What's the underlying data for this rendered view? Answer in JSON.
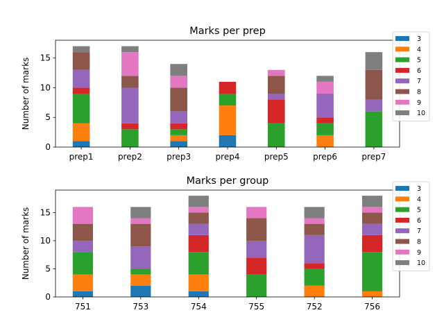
{
  "chart_data": [
    {
      "type": "bar",
      "stacked": true,
      "title": "Marks per prep",
      "xlabel": "",
      "ylabel": "Number of marks",
      "ylim": [
        0,
        18
      ],
      "yticks": [
        0,
        5,
        10,
        15
      ],
      "categories": [
        "prep1",
        "prep2",
        "prep3",
        "prep4",
        "prep5",
        "prep6",
        "prep7"
      ],
      "legend_position": "outside-top-right",
      "series": [
        {
          "name": "3",
          "color": "#1f77b4",
          "values": [
            1,
            0,
            1,
            2,
            0,
            0,
            0
          ]
        },
        {
          "name": "4",
          "color": "#ff7f0e",
          "values": [
            3,
            0,
            1,
            5,
            0,
            2,
            0
          ]
        },
        {
          "name": "5",
          "color": "#2ca02c",
          "values": [
            5,
            3,
            1,
            2,
            4,
            2,
            6
          ]
        },
        {
          "name": "6",
          "color": "#d62728",
          "values": [
            1,
            1,
            1,
            2,
            4,
            1,
            0
          ]
        },
        {
          "name": "7",
          "color": "#9467bd",
          "values": [
            3,
            6,
            2,
            0,
            1,
            4,
            2
          ]
        },
        {
          "name": "8",
          "color": "#8c564b",
          "values": [
            3,
            2,
            4,
            0,
            3,
            0,
            5
          ]
        },
        {
          "name": "9",
          "color": "#e377c2",
          "values": [
            0,
            4,
            2,
            0,
            1,
            2,
            0
          ]
        },
        {
          "name": "10",
          "color": "#7f7f7f",
          "values": [
            1,
            1,
            2,
            0,
            0,
            1,
            3
          ]
        }
      ]
    },
    {
      "type": "bar",
      "stacked": true,
      "title": "Marks per group",
      "xlabel": "",
      "ylabel": "Number of marks",
      "ylim": [
        0,
        19
      ],
      "yticks": [
        0,
        5,
        10,
        15
      ],
      "categories": [
        "751",
        "753",
        "754",
        "755",
        "752",
        "756"
      ],
      "legend_position": "outside-top-right",
      "series": [
        {
          "name": "3",
          "color": "#1f77b4",
          "values": [
            1,
            2,
            1,
            0,
            0,
            0
          ]
        },
        {
          "name": "4",
          "color": "#ff7f0e",
          "values": [
            3,
            2,
            3,
            0,
            2,
            1
          ]
        },
        {
          "name": "5",
          "color": "#2ca02c",
          "values": [
            4,
            1,
            4,
            4,
            3,
            7
          ]
        },
        {
          "name": "6",
          "color": "#d62728",
          "values": [
            0,
            0,
            3,
            3,
            1,
            3
          ]
        },
        {
          "name": "7",
          "color": "#9467bd",
          "values": [
            2,
            4,
            2,
            3,
            5,
            2
          ]
        },
        {
          "name": "8",
          "color": "#8c564b",
          "values": [
            3,
            4,
            2,
            4,
            2,
            2
          ]
        },
        {
          "name": "9",
          "color": "#e377c2",
          "values": [
            3,
            1,
            1,
            2,
            1,
            1
          ]
        },
        {
          "name": "10",
          "color": "#7f7f7f",
          "values": [
            0,
            2,
            2,
            0,
            2,
            2
          ]
        }
      ]
    }
  ]
}
